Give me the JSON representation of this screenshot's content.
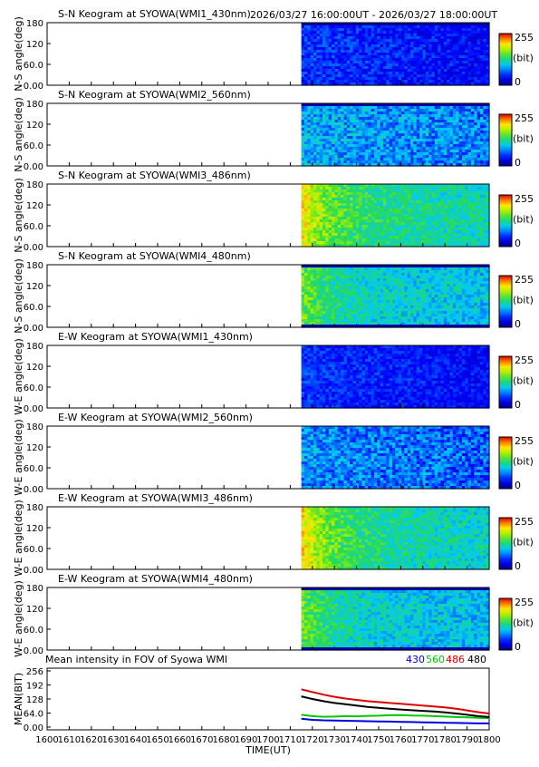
{
  "header": {
    "time_range": "2026/03/27 16:00:00UT - 2026/03/27 18:00:00UT"
  },
  "colorbar": {
    "max_label": "255",
    "unit_label": "(bit)",
    "min_label": "0"
  },
  "chart_data": [
    {
      "type": "heatmap",
      "title": "S-N Keogram at SYOWA(WMI1_430nm)",
      "ylabel": "N-S angle(deg)",
      "yticks": [
        "180",
        "120",
        "60.0",
        "0.00"
      ],
      "ylim": [
        0,
        180
      ],
      "xlim": [
        1600,
        1800
      ],
      "data_start": 1715,
      "level": 0.22,
      "edge_level": 0.22,
      "variability": 0.08,
      "top_band": "dark",
      "bottom_band": "none"
    },
    {
      "type": "heatmap",
      "title": "S-N Keogram at SYOWA(WMI2_560nm)",
      "ylabel": "N-S angle(deg)",
      "yticks": [
        "180",
        "120",
        "60.0",
        "0.00"
      ],
      "ylim": [
        0,
        180
      ],
      "xlim": [
        1600,
        1800
      ],
      "data_start": 1715,
      "level": 0.36,
      "edge_level": 0.36,
      "variability": 0.12,
      "top_band": "dark",
      "bottom_band": "none"
    },
    {
      "type": "heatmap",
      "title": "S-N Keogram at SYOWA(WMI3_486nm)",
      "ylabel": "N-S angle(deg)",
      "yticks": [
        "180",
        "120",
        "60.0",
        "0.00"
      ],
      "ylim": [
        0,
        180
      ],
      "xlim": [
        1600,
        1800
      ],
      "data_start": 1715,
      "level": 0.52,
      "edge_level": 0.78,
      "variability": 0.1,
      "top_band": "none",
      "bottom_band": "none"
    },
    {
      "type": "heatmap",
      "title": "S-N Keogram at SYOWA(WMI4_480nm)",
      "ylabel": "N-S angle(deg)",
      "yticks": [
        "180",
        "120",
        "60.0",
        "0.00"
      ],
      "ylim": [
        0,
        180
      ],
      "xlim": [
        1600,
        1800
      ],
      "data_start": 1715,
      "level": 0.45,
      "edge_level": 0.62,
      "variability": 0.1,
      "top_band": "dark",
      "bottom_band": "dark"
    },
    {
      "type": "heatmap",
      "title": "E-W Keogram at SYOWA(WMI1_430nm)",
      "ylabel": "W-E angle(deg)",
      "yticks": [
        "180",
        "120",
        "60.0",
        "0.00"
      ],
      "ylim": [
        0,
        180
      ],
      "xlim": [
        1600,
        1800
      ],
      "data_start": 1715,
      "level": 0.22,
      "edge_level": 0.22,
      "variability": 0.07,
      "top_band": "none",
      "bottom_band": "none"
    },
    {
      "type": "heatmap",
      "title": "E-W Keogram at SYOWA(WMI2_560nm)",
      "ylabel": "W-E angle(deg)",
      "yticks": [
        "180",
        "120",
        "60.0",
        "0.00"
      ],
      "ylim": [
        0,
        180
      ],
      "xlim": [
        1600,
        1800
      ],
      "data_start": 1715,
      "level": 0.32,
      "edge_level": 0.34,
      "variability": 0.12,
      "top_band": "none",
      "bottom_band": "none"
    },
    {
      "type": "heatmap",
      "title": "E-W Keogram at SYOWA(WMI3_486nm)",
      "ylabel": "W-E angle(deg)",
      "yticks": [
        "180",
        "120",
        "60.0",
        "0.00"
      ],
      "ylim": [
        0,
        180
      ],
      "xlim": [
        1600,
        1800
      ],
      "data_start": 1715,
      "level": 0.5,
      "edge_level": 0.8,
      "variability": 0.1,
      "top_band": "none",
      "bottom_band": "none"
    },
    {
      "type": "heatmap",
      "title": "E-W Keogram at SYOWA(WMI4_480nm)",
      "ylabel": "W-E angle(deg)",
      "yticks": [
        "180",
        "120",
        "60.0",
        "0.00"
      ],
      "ylim": [
        0,
        180
      ],
      "xlim": [
        1600,
        1800
      ],
      "data_start": 1715,
      "level": 0.44,
      "edge_level": 0.62,
      "variability": 0.1,
      "top_band": "dark",
      "bottom_band": "dark"
    },
    {
      "type": "line",
      "title": "Mean intensity in FOV of Syowa WMI",
      "ylabel": "MEAN(BIT)",
      "xlabel": "TIME(UT)",
      "yticks": [
        "256",
        "192",
        "128",
        "64.0",
        "0.00"
      ],
      "ylim": [
        0,
        256
      ],
      "xticks": [
        "1600",
        "1610",
        "1620",
        "1630",
        "1640",
        "1650",
        "1660",
        "1670",
        "1680",
        "1690",
        "1700",
        "1710",
        "1720",
        "1730",
        "1740",
        "1750",
        "1760",
        "1770",
        "1780",
        "1790",
        "1800"
      ],
      "xlim": [
        1600,
        1800
      ],
      "x": [
        1715,
        1720,
        1725,
        1730,
        1735,
        1740,
        1745,
        1750,
        1755,
        1760,
        1765,
        1770,
        1775,
        1780,
        1785,
        1790,
        1795,
        1800
      ],
      "series": [
        {
          "name": "430",
          "color": "#0000dd",
          "values": [
            38,
            33,
            31,
            30,
            29,
            28,
            27,
            26,
            25,
            24,
            23,
            22,
            21,
            20,
            19,
            18,
            17,
            17
          ]
        },
        {
          "name": "560",
          "color": "#00c800",
          "values": [
            56,
            50,
            47,
            48,
            50,
            49,
            51,
            52,
            54,
            55,
            53,
            52,
            50,
            48,
            46,
            44,
            42,
            41
          ]
        },
        {
          "name": "486",
          "color": "#e00000",
          "values": [
            172,
            160,
            148,
            138,
            130,
            124,
            118,
            114,
            110,
            106,
            102,
            98,
            94,
            90,
            84,
            76,
            68,
            62
          ]
        },
        {
          "name": "480",
          "color": "#000000",
          "values": [
            140,
            128,
            118,
            110,
            104,
            98,
            92,
            88,
            84,
            80,
            77,
            74,
            71,
            67,
            62,
            56,
            50,
            46
          ]
        }
      ]
    }
  ]
}
